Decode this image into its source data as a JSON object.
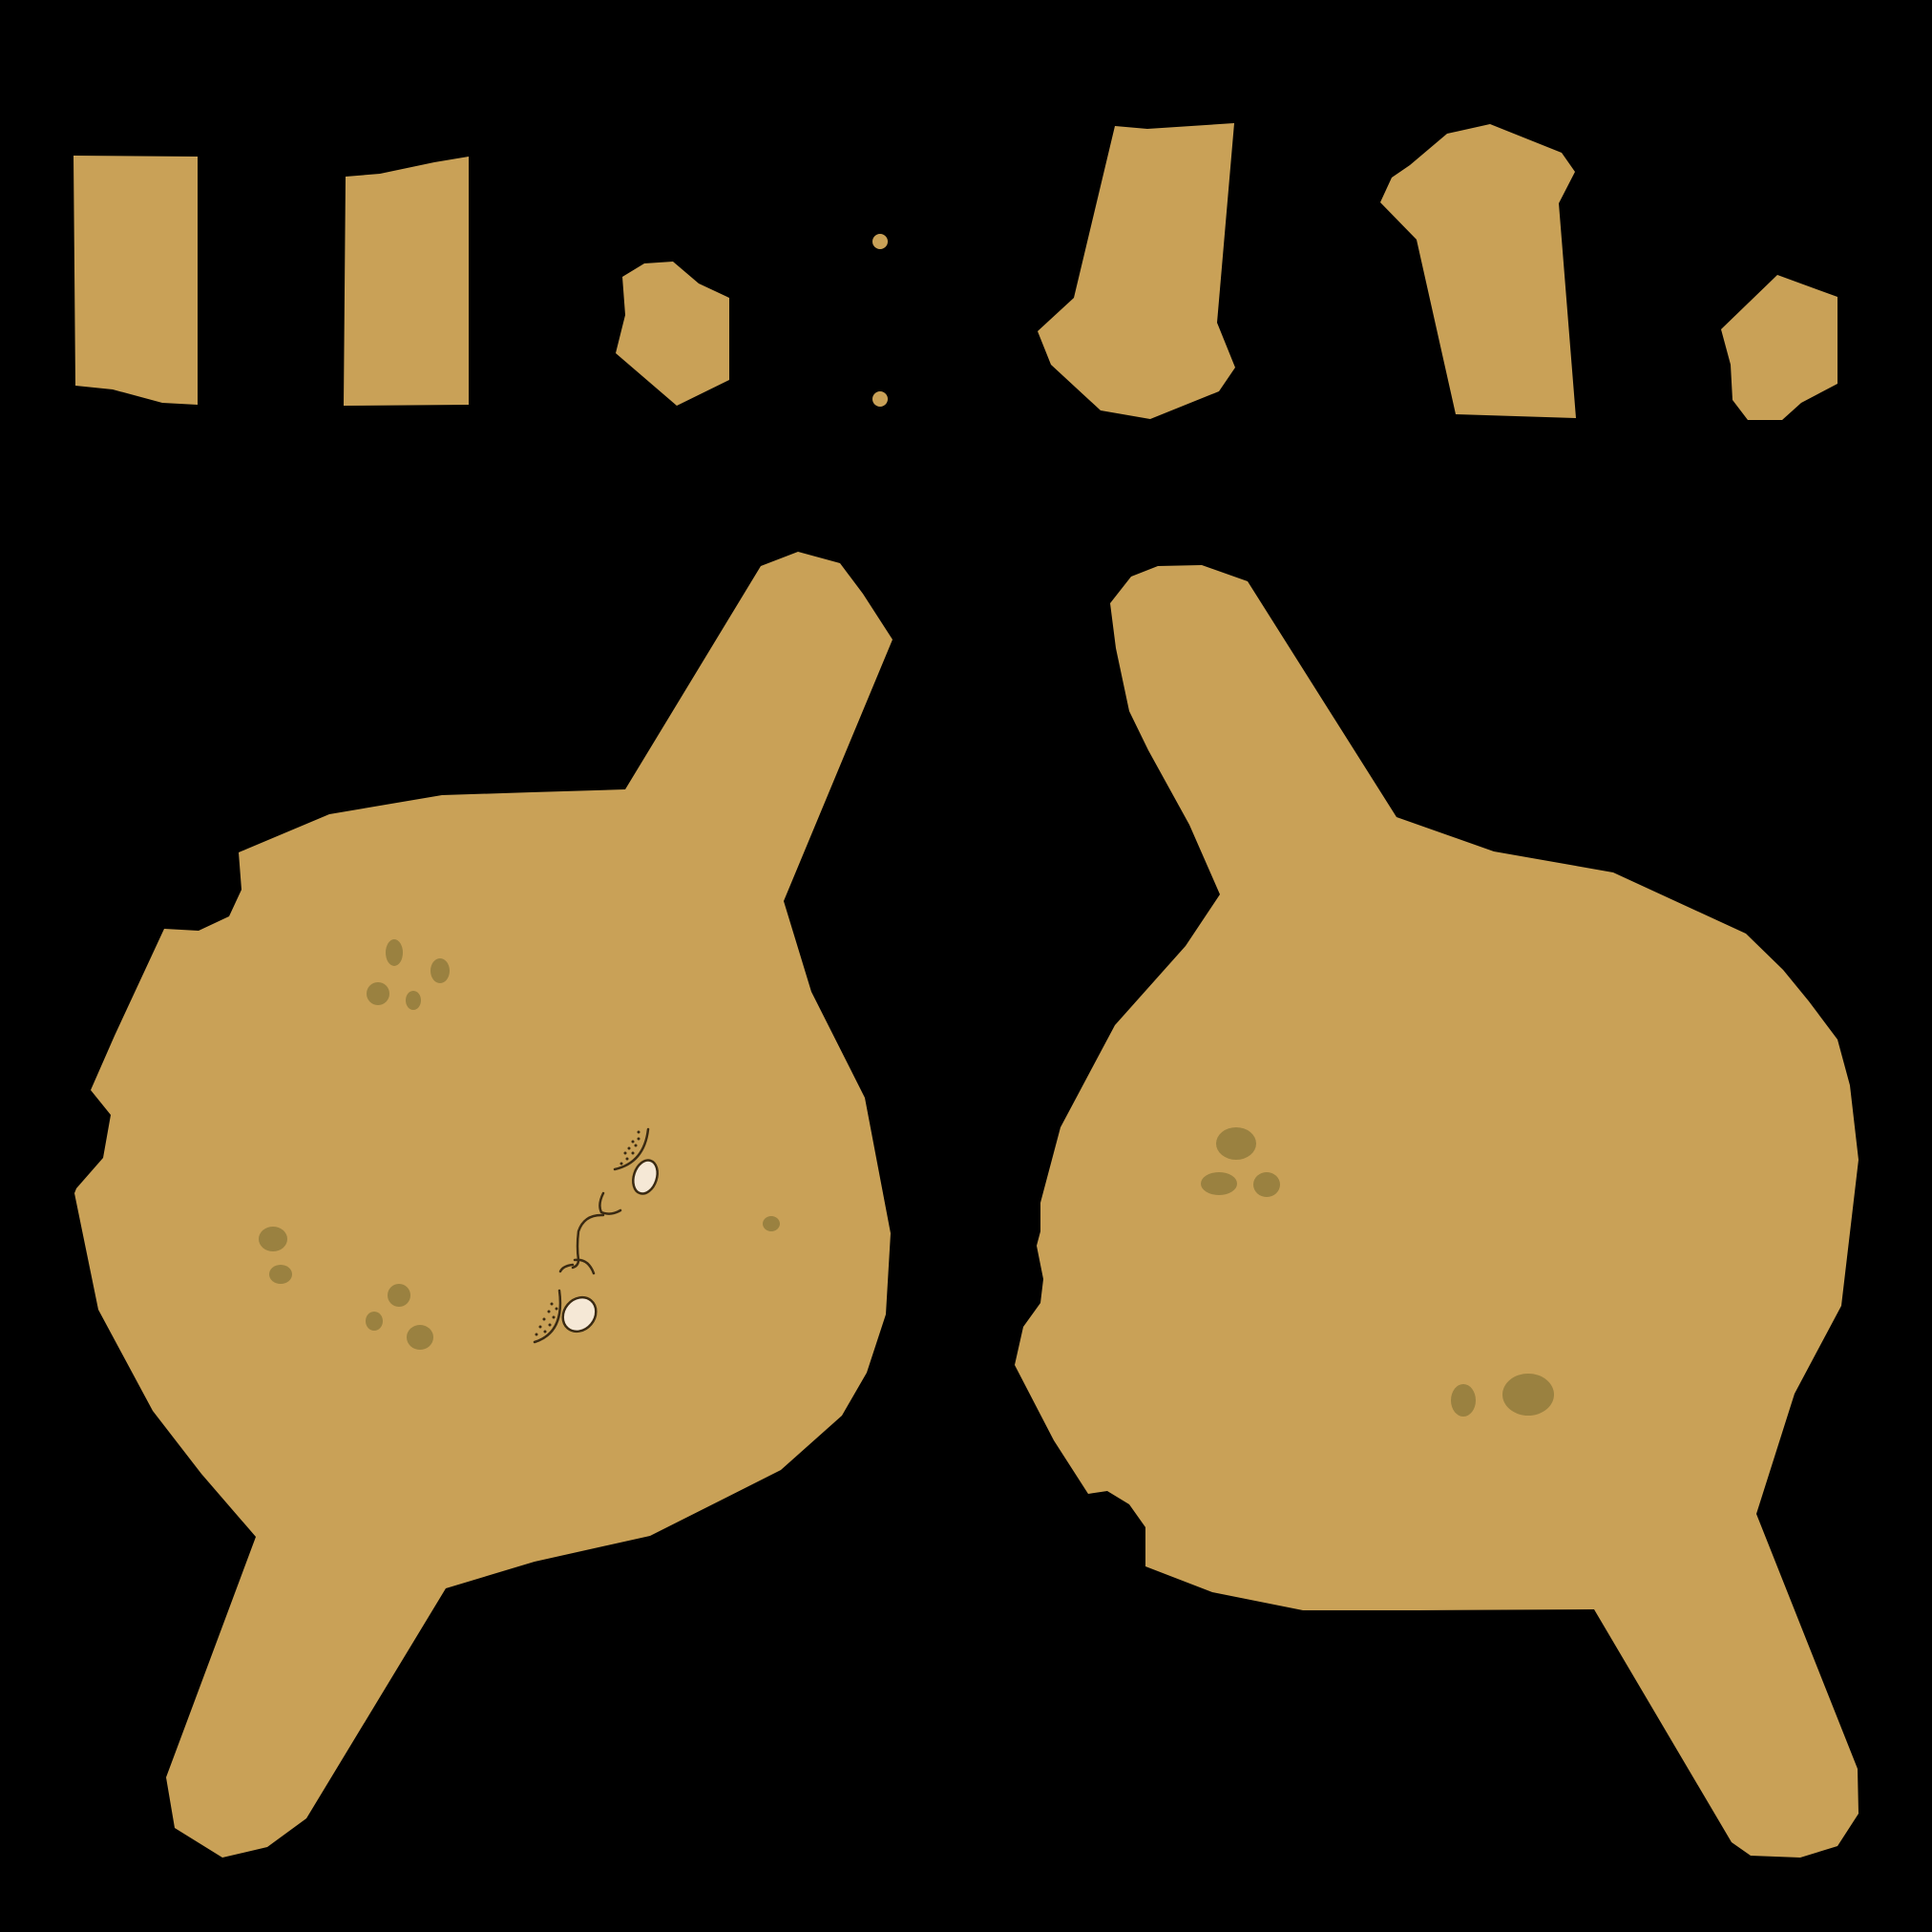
{
  "colors": {
    "background": "#000000",
    "body": "#c9a157",
    "spot": "#9a8140",
    "eye_fill": "#f5e8d6",
    "line": "#3a2a12"
  },
  "atlas": {
    "type": "sprite-texture-atlas",
    "pieces": [
      "limb-strip-1",
      "limb-strip-2",
      "small-hexagon-patch-1",
      "tiny-dot-1",
      "tiny-dot-2",
      "foot-piece-1",
      "foot-piece-2",
      "small-hexagon-patch-2",
      "body-front-with-face",
      "body-back"
    ],
    "face": {
      "eyes": 2,
      "mouth": "curly-line"
    }
  }
}
